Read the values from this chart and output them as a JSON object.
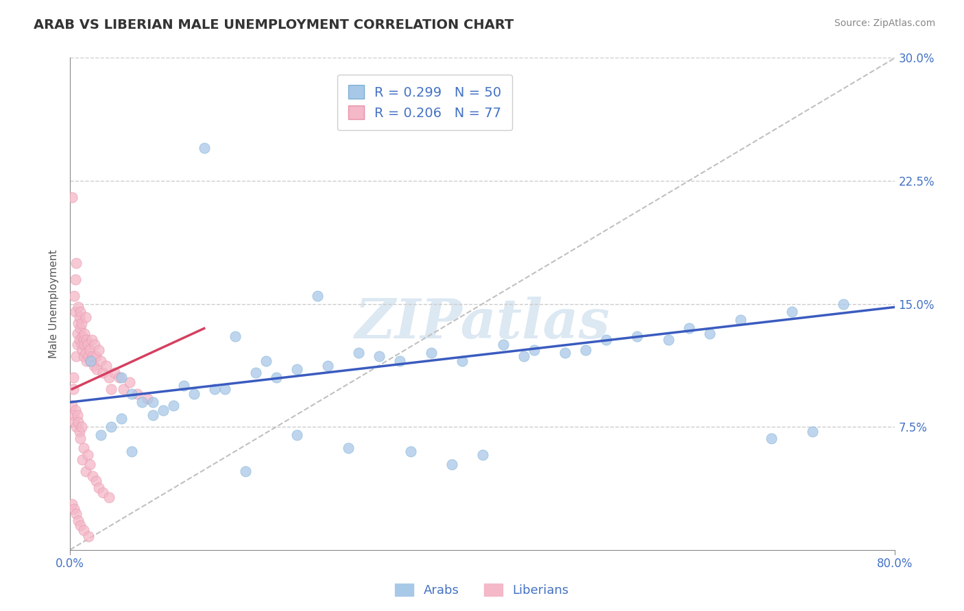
{
  "title": "ARAB VS LIBERIAN MALE UNEMPLOYMENT CORRELATION CHART",
  "source_text": "Source: ZipAtlas.com",
  "ylabel": "Male Unemployment",
  "watermark": "ZIPatlas",
  "xlim": [
    0.0,
    0.8
  ],
  "ylim": [
    0.0,
    0.3
  ],
  "xticks": [
    0.0,
    0.8
  ],
  "xtick_labels": [
    "0.0%",
    "80.0%"
  ],
  "yticks": [
    0.075,
    0.15,
    0.225,
    0.3
  ],
  "ytick_labels": [
    "7.5%",
    "15.0%",
    "22.5%",
    "30.0%"
  ],
  "arab_color": "#a8c8e8",
  "liberian_color": "#f4b8c8",
  "arab_edge_color": "#7bafd4",
  "liberian_edge_color": "#e890a8",
  "arab_line_color": "#3a5bbf",
  "liberian_line_color": "#d44060",
  "arab_R": 0.299,
  "arab_N": 50,
  "liberian_R": 0.206,
  "liberian_N": 77,
  "legend_entries": [
    "Arabs",
    "Liberians"
  ],
  "background_color": "#ffffff",
  "grid_color": "#cccccc",
  "title_fontsize": 14,
  "axis_label_fontsize": 11,
  "tick_fontsize": 12,
  "legend_fontsize": 14,
  "arab_points_x": [
    0.13,
    0.02,
    0.24,
    0.06,
    0.08,
    0.05,
    0.16,
    0.03,
    0.09,
    0.22,
    0.11,
    0.28,
    0.05,
    0.07,
    0.04,
    0.19,
    0.35,
    0.42,
    0.38,
    0.55,
    0.6,
    0.48,
    0.65,
    0.7,
    0.75,
    0.32,
    0.44,
    0.58,
    0.5,
    0.62,
    0.2,
    0.15,
    0.18,
    0.1,
    0.25,
    0.3,
    0.08,
    0.12,
    0.45,
    0.52,
    0.14,
    0.06,
    0.22,
    0.33,
    0.4,
    0.68,
    0.72,
    0.37,
    0.27,
    0.17
  ],
  "arab_points_y": [
    0.245,
    0.115,
    0.155,
    0.095,
    0.09,
    0.08,
    0.13,
    0.07,
    0.085,
    0.11,
    0.1,
    0.12,
    0.105,
    0.09,
    0.075,
    0.115,
    0.12,
    0.125,
    0.115,
    0.13,
    0.135,
    0.12,
    0.14,
    0.145,
    0.15,
    0.115,
    0.118,
    0.128,
    0.122,
    0.132,
    0.105,
    0.098,
    0.108,
    0.088,
    0.112,
    0.118,
    0.082,
    0.095,
    0.122,
    0.128,
    0.098,
    0.06,
    0.07,
    0.06,
    0.058,
    0.068,
    0.072,
    0.052,
    0.062,
    0.048
  ],
  "liberian_points_x": [
    0.002,
    0.003,
    0.003,
    0.004,
    0.005,
    0.005,
    0.006,
    0.006,
    0.007,
    0.007,
    0.008,
    0.008,
    0.009,
    0.009,
    0.01,
    0.01,
    0.011,
    0.011,
    0.012,
    0.012,
    0.013,
    0.013,
    0.014,
    0.014,
    0.015,
    0.015,
    0.016,
    0.016,
    0.017,
    0.018,
    0.019,
    0.02,
    0.021,
    0.022,
    0.023,
    0.024,
    0.025,
    0.026,
    0.028,
    0.03,
    0.032,
    0.035,
    0.038,
    0.04,
    0.043,
    0.048,
    0.052,
    0.058,
    0.065,
    0.075,
    0.002,
    0.003,
    0.004,
    0.005,
    0.006,
    0.007,
    0.008,
    0.009,
    0.01,
    0.011,
    0.012,
    0.013,
    0.015,
    0.017,
    0.019,
    0.022,
    0.025,
    0.028,
    0.032,
    0.038,
    0.002,
    0.004,
    0.006,
    0.008,
    0.01,
    0.013,
    0.018
  ],
  "liberian_points_y": [
    0.215,
    0.105,
    0.098,
    0.155,
    0.145,
    0.165,
    0.118,
    0.175,
    0.125,
    0.132,
    0.148,
    0.138,
    0.142,
    0.128,
    0.145,
    0.135,
    0.125,
    0.138,
    0.13,
    0.122,
    0.128,
    0.118,
    0.132,
    0.125,
    0.12,
    0.142,
    0.115,
    0.128,
    0.125,
    0.118,
    0.122,
    0.115,
    0.128,
    0.118,
    0.112,
    0.125,
    0.118,
    0.11,
    0.122,
    0.115,
    0.108,
    0.112,
    0.105,
    0.098,
    0.108,
    0.105,
    0.098,
    0.102,
    0.095,
    0.092,
    0.088,
    0.082,
    0.078,
    0.085,
    0.075,
    0.082,
    0.078,
    0.072,
    0.068,
    0.075,
    0.055,
    0.062,
    0.048,
    0.058,
    0.052,
    0.045,
    0.042,
    0.038,
    0.035,
    0.032,
    0.028,
    0.025,
    0.022,
    0.018,
    0.015,
    0.012,
    0.008
  ],
  "arab_trendline": [
    0.09,
    0.148
  ],
  "liberian_trendline_x": [
    0.002,
    0.13
  ],
  "liberian_trendline_y": [
    0.098,
    0.135
  ]
}
